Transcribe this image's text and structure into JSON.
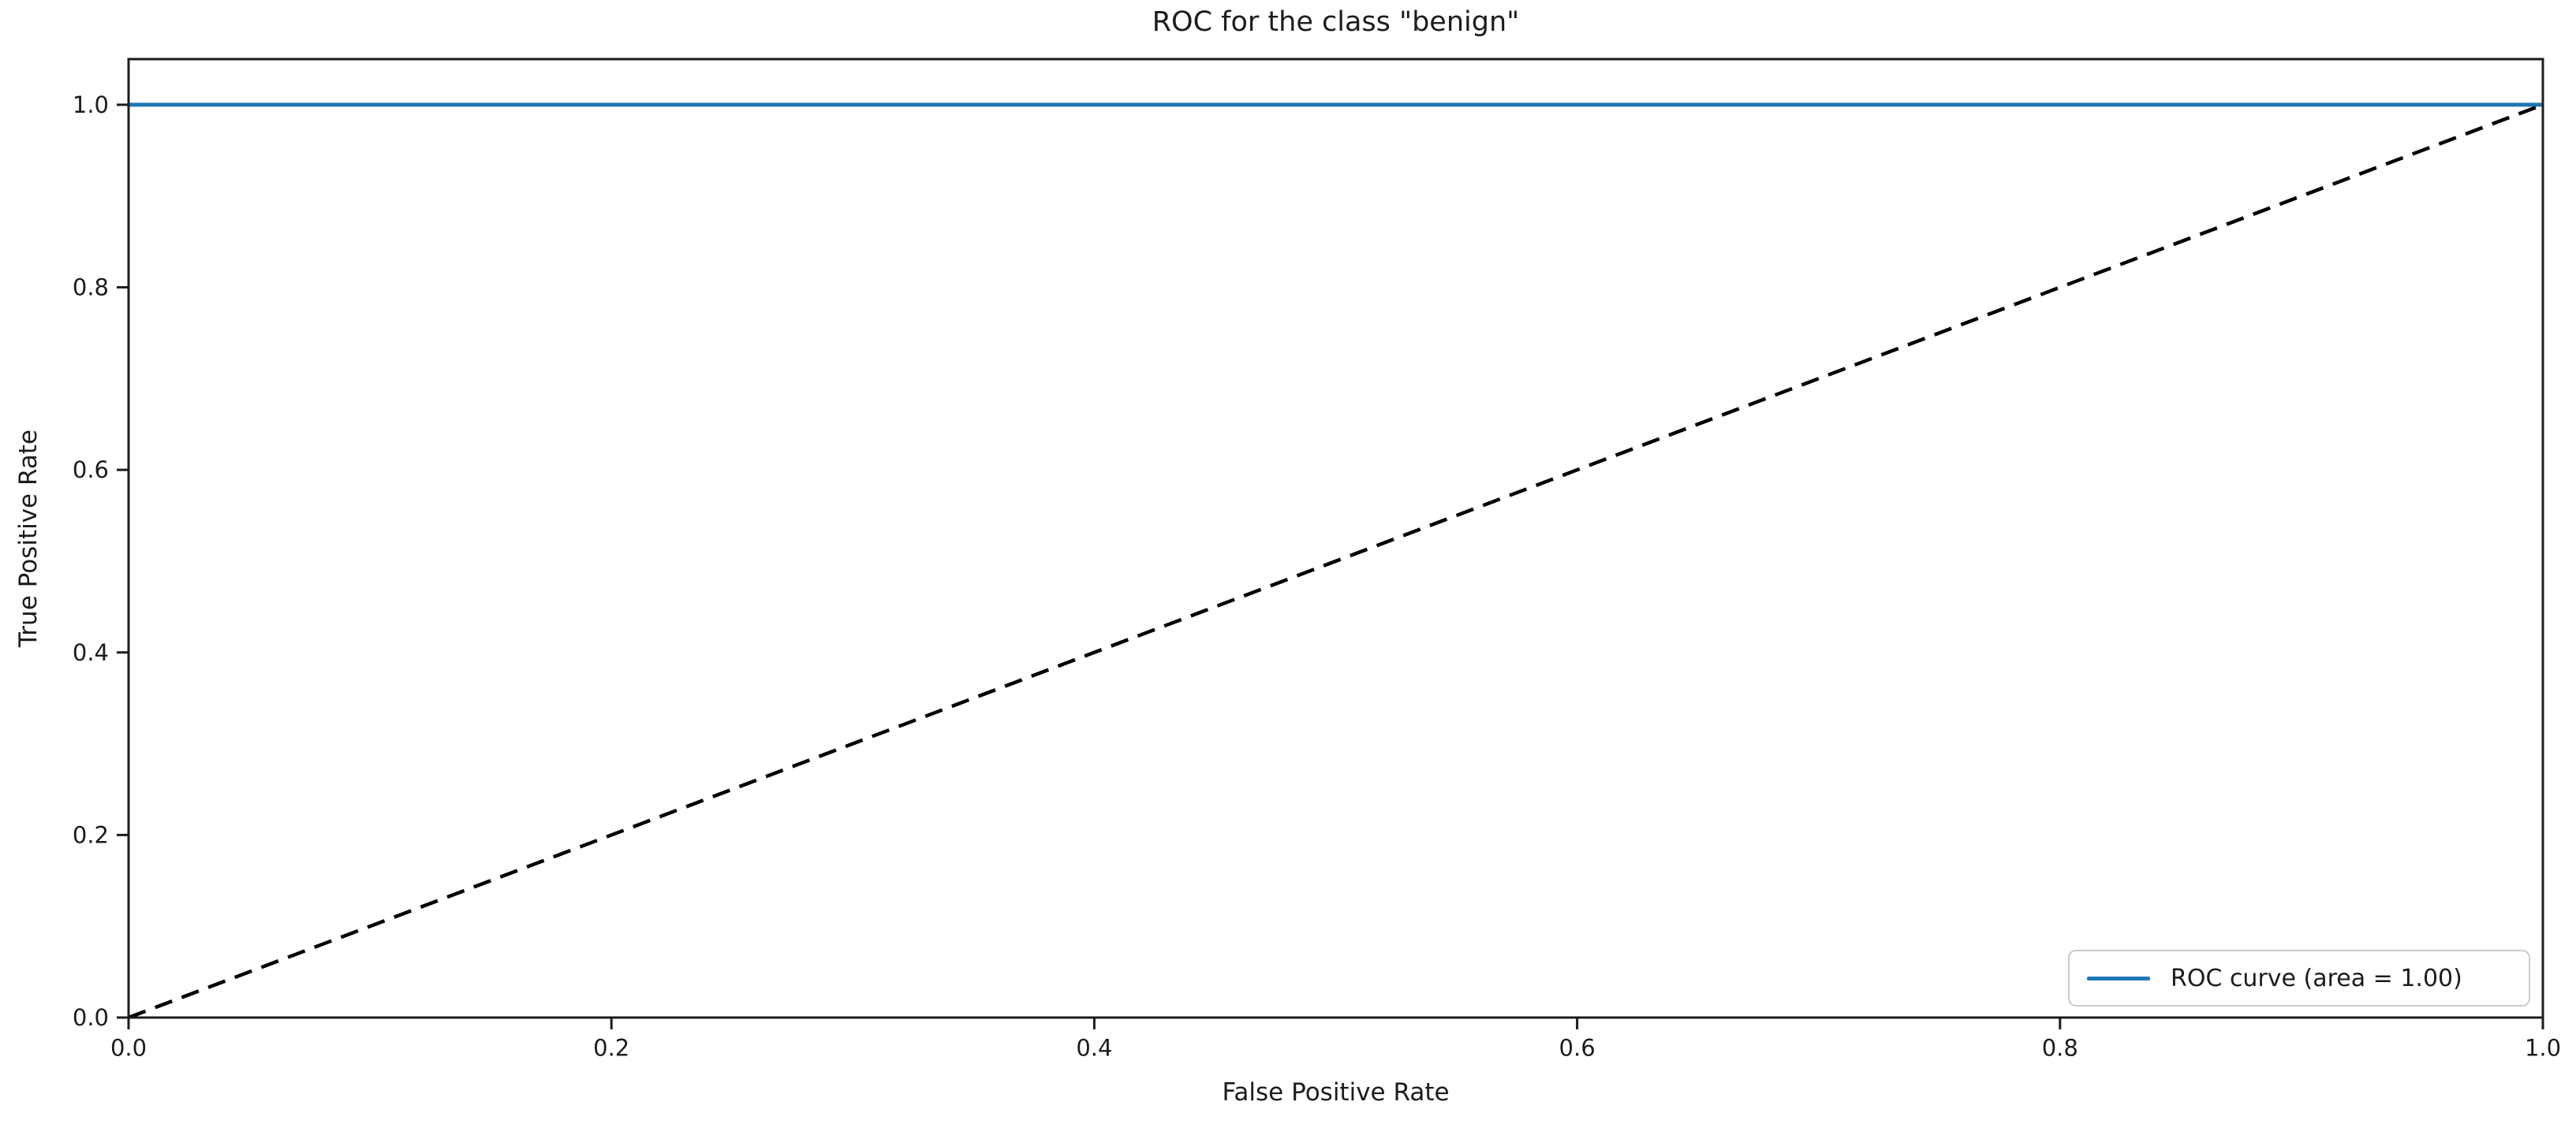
{
  "chart": {
    "title": "ROC for the class \"benign\"",
    "xlabel": "False Positive Rate",
    "ylabel": "True Positive Rate",
    "legend": {
      "roc_label": "ROC curve (area = 1.00)"
    }
  },
  "colors": {
    "roc_line": "#1f77b4",
    "chance_line": "#000000",
    "axis": "#1c1c1c",
    "text": "#1c1c1c",
    "legend_border": "#cccccc"
  },
  "chart_data": {
    "type": "line",
    "title": "ROC for the class \"benign\"",
    "xlabel": "False Positive Rate",
    "ylabel": "True Positive Rate",
    "xlim": [
      0.0,
      1.0
    ],
    "ylim": [
      0.0,
      1.05
    ],
    "x_ticks": [
      "0.0",
      "0.2",
      "0.4",
      "0.6",
      "0.8",
      "1.0"
    ],
    "y_ticks": [
      "0.0",
      "0.2",
      "0.4",
      "0.6",
      "0.8",
      "1.0"
    ],
    "grid": false,
    "legend_position": "lower right",
    "series": [
      {
        "name": "ROC curve (area = 1.00)",
        "color": "#1f77b4",
        "style": "solid",
        "in_legend": true,
        "x": [
          0.0,
          1.0
        ],
        "y": [
          1.0,
          1.0
        ]
      },
      {
        "name": "chance-diagonal",
        "color": "#000000",
        "style": "dashed",
        "in_legend": false,
        "x": [
          0.0,
          1.0
        ],
        "y": [
          0.0,
          1.0
        ]
      }
    ],
    "area_under_curve": "1.00"
  }
}
